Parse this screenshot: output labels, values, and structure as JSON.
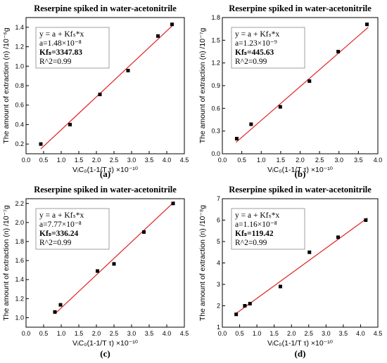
{
  "chart_data": [
    {
      "type": "scatter",
      "panel_label": "(a)",
      "title": "Reserpine spiked in water-acetonitrile",
      "xlabel": "VᵢC₀(1-1/T τ) ×10⁻¹⁰",
      "ylabel": "The amount of extraction (n) /10⁻⁶g",
      "xlim": [
        0,
        4.5
      ],
      "ylim": [
        0.1,
        1.5
      ],
      "xticks": [
        "0.0",
        "0.5",
        "1.0",
        "1.5",
        "2.0",
        "2.5",
        "3.0",
        "3.5",
        "4.0",
        "4.5"
      ],
      "yticks": [
        "0.2",
        "0.4",
        "0.6",
        "0.8",
        "1.0",
        "1.2",
        "1.4"
      ],
      "points": [
        [
          0.42,
          0.2
        ],
        [
          1.25,
          0.4
        ],
        [
          2.1,
          0.71
        ],
        [
          2.9,
          0.955
        ],
        [
          3.75,
          1.31
        ],
        [
          4.15,
          1.43
        ]
      ],
      "fit_line": [
        [
          0.42,
          0.15
        ],
        [
          4.2,
          1.43
        ]
      ],
      "annotation": [
        "y = a + Kfₛ*x",
        "a=1.48×10⁻⁸",
        "Kfₛ=3347.83",
        "R^2=0.99"
      ],
      "annotation_bold": [
        false,
        false,
        true,
        false
      ],
      "grid": false,
      "colors": {
        "points": "#000000",
        "fit": "#e02020"
      }
    },
    {
      "type": "scatter",
      "panel_label": "(b)",
      "title": "Reserpine spiked in water-acetonitrile",
      "xlabel": "VᵢC₀(1-1/T τ) ×10⁻¹⁰",
      "ylabel": "The amount of extraction (n) /10⁻⁷g",
      "xlim": [
        0,
        4.0
      ],
      "ylim": [
        0.0,
        1.8
      ],
      "xticks": [
        "0.0",
        "0.5",
        "1.0",
        "1.5",
        "2.0",
        "2.5",
        "3.0",
        "3.5",
        "4.0"
      ],
      "yticks": [
        "0.0",
        "0.3",
        "0.6",
        "0.9",
        "1.2",
        "1.5",
        "1.8"
      ],
      "points": [
        [
          0.37,
          0.2
        ],
        [
          0.74,
          0.39
        ],
        [
          1.49,
          0.62
        ],
        [
          2.24,
          0.96
        ],
        [
          2.98,
          1.35
        ],
        [
          3.72,
          1.71
        ]
      ],
      "fit_line": [
        [
          0.35,
          0.15
        ],
        [
          3.75,
          1.67
        ]
      ],
      "annotation": [
        "y = a + Kfₛ*x",
        "a=1.23×10⁻⁹",
        "Kfₛ=445.63",
        "R^2=0.99"
      ],
      "annotation_bold": [
        false,
        false,
        true,
        false
      ],
      "grid": false,
      "colors": {
        "points": "#000000",
        "fit": "#e02020"
      }
    },
    {
      "type": "scatter",
      "panel_label": "(c)",
      "title": "Reserpine spiked in water-acetonitrile",
      "xlabel": "VᵢC₀(1-1/T τ) ×10⁻¹⁰",
      "ylabel": "The amount of extraction (n) /10⁻⁷g",
      "xlim": [
        0,
        4.5
      ],
      "ylim": [
        0.9,
        2.25
      ],
      "xticks": [
        "0.0",
        "0.5",
        "1.0",
        "1.5",
        "2.0",
        "2.5",
        "3.0",
        "3.5",
        "4.0",
        "4.5"
      ],
      "yticks": [
        "1.0",
        "1.2",
        "1.4",
        "1.6",
        "1.8",
        "2.0",
        "2.2"
      ],
      "points": [
        [
          0.82,
          1.06
        ],
        [
          0.98,
          1.135
        ],
        [
          2.03,
          1.49
        ],
        [
          2.5,
          1.565
        ],
        [
          3.35,
          1.9
        ],
        [
          4.18,
          2.2
        ]
      ],
      "fit_line": [
        [
          0.82,
          1.04
        ],
        [
          4.22,
          2.22
        ]
      ],
      "annotation": [
        "y = a + Kfₛ*x",
        "a=7.77×10⁻⁸",
        "Kfₛ=336.24",
        "R^2=0.99"
      ],
      "annotation_bold": [
        false,
        false,
        true,
        false
      ],
      "grid": false,
      "colors": {
        "points": "#000000",
        "fit": "#e02020"
      }
    },
    {
      "type": "scatter",
      "panel_label": "(d)",
      "title": "Reserpine spiked in water-acetonitrile",
      "xlabel": "VᵢC₀(1-1/T τ) ×10⁻¹⁰",
      "ylabel": "The amount of extraction (n) /10⁻⁸g",
      "xlim": [
        0,
        4.5
      ],
      "ylim": [
        1.0,
        7.0
      ],
      "xticks": [
        "0.0",
        "0.5",
        "1.0",
        "1.5",
        "2.0",
        "2.5",
        "3.0",
        "3.5",
        "4.0",
        "4.5"
      ],
      "yticks": [
        "1",
        "2",
        "3",
        "4",
        "5",
        "6",
        "7"
      ],
      "points": [
        [
          0.4,
          1.6
        ],
        [
          0.65,
          2.0
        ],
        [
          0.8,
          2.1
        ],
        [
          1.68,
          2.9
        ],
        [
          2.52,
          4.5
        ],
        [
          3.35,
          5.2
        ],
        [
          4.15,
          6.0
        ]
      ],
      "fit_line": [
        [
          0.38,
          1.62
        ],
        [
          4.2,
          6.1
        ]
      ],
      "annotation": [
        "y = a + Kfₛ*x",
        "a=1.16×10⁻⁸",
        "Kfₛ=119.42",
        "R^2=0.99"
      ],
      "annotation_bold": [
        false,
        false,
        true,
        false
      ],
      "grid": false,
      "colors": {
        "points": "#000000",
        "fit": "#e02020"
      }
    }
  ]
}
